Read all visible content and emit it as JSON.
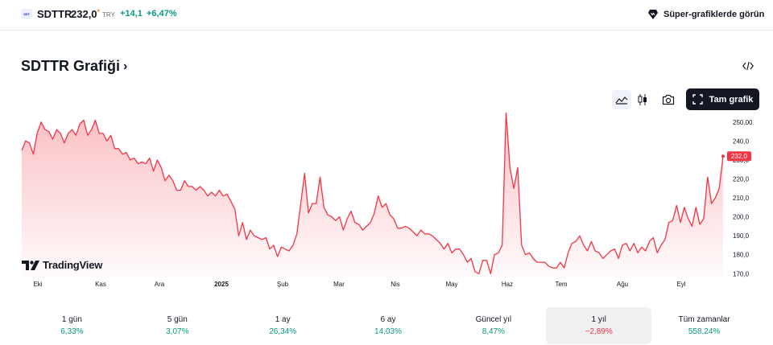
{
  "header": {
    "logo_text": "SDT",
    "symbol": "SDTTR",
    "price": "232,0",
    "price_marker": "●",
    "currency": "TRY",
    "change": "+14,1",
    "change_pct": "+6,47%",
    "super_chart_label": "Süper-grafiklerde görün"
  },
  "title": {
    "text": "SDTTR Grafiği",
    "chevron": "›"
  },
  "toolbar": {
    "full_chart_label": "Tam grafik"
  },
  "colors": {
    "line": "#f23645",
    "positive": "#089981",
    "negative": "#f23645",
    "dark_button": "#131722"
  },
  "brand": {
    "name": "TradingView"
  },
  "chart_data": {
    "type": "area",
    "x_axis_labels": [
      "Eki",
      "Kas",
      "Ara",
      "2025",
      "Şub",
      "Mar",
      "Nis",
      "May",
      "Haz",
      "Tem",
      "Ağu",
      "Eyl"
    ],
    "y_axis_labels": [
      "250,00",
      "240,0",
      "230,0",
      "220,0",
      "210,0",
      "200,0",
      "190,0",
      "180,0",
      "170,0"
    ],
    "y_ticks": [
      250,
      240,
      230,
      220,
      210,
      200,
      190,
      180,
      170
    ],
    "ylim": [
      168,
      255
    ],
    "last_price_label": "232,0",
    "last_price": 232.0,
    "series": [
      {
        "values": [
          235,
          240,
          239,
          233,
          244,
          250,
          246,
          245,
          241,
          246,
          244,
          239,
          244,
          246,
          243,
          249,
          251,
          243,
          246,
          251,
          244,
          244,
          240,
          243,
          236,
          236,
          233,
          234,
          230,
          231,
          228,
          229,
          228,
          231,
          224,
          230,
          226,
          219,
          222,
          219,
          214,
          214,
          219,
          216,
          216,
          214,
          216,
          214,
          211,
          213,
          211,
          214,
          211,
          212,
          208,
          204,
          190,
          197,
          188,
          193,
          190,
          189,
          188,
          189,
          183,
          185,
          179,
          184,
          183,
          182,
          185,
          191,
          207,
          223,
          202,
          207,
          207,
          221,
          205,
          201,
          200,
          198,
          200,
          193,
          199,
          203,
          197,
          196,
          193,
          195,
          197,
          202,
          211,
          205,
          207,
          201,
          199,
          194,
          194,
          195,
          194,
          192,
          190,
          193,
          191,
          191,
          190,
          188,
          186,
          183,
          186,
          181,
          183,
          183,
          180,
          176,
          178,
          171,
          170,
          177,
          177,
          170,
          180,
          181,
          185,
          255,
          226,
          215,
          226,
          185,
          180,
          181,
          178,
          176,
          176,
          176,
          174,
          173,
          173,
          176,
          173,
          181,
          186,
          187,
          190,
          185,
          182,
          187,
          182,
          181,
          178,
          180,
          182,
          183,
          178,
          185,
          186,
          182,
          186,
          181,
          184,
          182,
          187,
          189,
          181,
          185,
          188,
          197,
          198,
          206,
          197,
          205,
          199,
          195,
          205,
          196,
          199,
          221,
          207,
          210,
          215,
          232
        ]
      }
    ]
  },
  "periods": [
    {
      "label": "1 gün",
      "value": "6,33%",
      "sign": "pos"
    },
    {
      "label": "5 gün",
      "value": "3,07%",
      "sign": "pos"
    },
    {
      "label": "1 ay",
      "value": "26,34%",
      "sign": "pos"
    },
    {
      "label": "6 ay",
      "value": "14,03%",
      "sign": "pos"
    },
    {
      "label": "Güncel yıl",
      "value": "8,47%",
      "sign": "pos"
    },
    {
      "label": "1 yıl",
      "value": "−2,89%",
      "sign": "neg",
      "active": true
    },
    {
      "label": "Tüm zamanlar",
      "value": "558,24%",
      "sign": "pos"
    }
  ]
}
